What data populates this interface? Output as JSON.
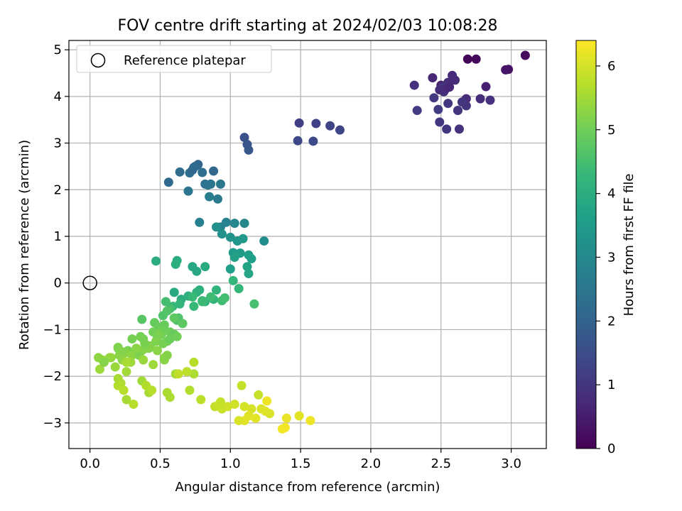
{
  "chart_data": {
    "type": "scatter",
    "title": "FOV centre drift starting at 2024/02/03 10:08:28",
    "xlabel": "Angular distance from reference (arcmin)",
    "ylabel": "Rotation from reference (arcmin)",
    "xlim": [
      -0.15,
      3.25
    ],
    "ylim": [
      -3.55,
      5.2
    ],
    "xticks": [
      "0.0",
      "0.5",
      "1.0",
      "1.5",
      "2.0",
      "2.5",
      "3.0"
    ],
    "xtick_values": [
      0,
      0.5,
      1.0,
      1.5,
      2.0,
      2.5,
      3.0
    ],
    "yticks": [
      "−3",
      "−2",
      "−1",
      "0",
      "1",
      "2",
      "3",
      "4",
      "5"
    ],
    "ytick_values": [
      -3,
      -2,
      -1,
      0,
      1,
      2,
      3,
      4,
      5
    ],
    "grid": true,
    "legend": {
      "position": "top-left",
      "entries": [
        "Reference platepar"
      ]
    },
    "reference_point": {
      "x": 0.0,
      "y": 0.0
    },
    "colorbar": {
      "label": "Hours from first FF file",
      "range": [
        0,
        6.4
      ],
      "ticks": [
        "0",
        "1",
        "2",
        "3",
        "4",
        "5",
        "6"
      ],
      "tick_values": [
        0,
        1,
        2,
        3,
        4,
        5,
        6
      ],
      "colormap": "viridis"
    },
    "series": [
      {
        "x": [
          2.69,
          2.75,
          3.1,
          2.98,
          2.96,
          2.67,
          2.82,
          2.5,
          2.44,
          2.58,
          2.6,
          2.55,
          2.31,
          2.62,
          2.51,
          2.52,
          2.68,
          2.63,
          2.62,
          2.49,
          2.45,
          2.78,
          2.85,
          2.54,
          2.68,
          2.33,
          2.48,
          2.53,
          2.65,
          2.49,
          2.55,
          2.56
        ],
        "y": [
          4.8,
          4.8,
          4.88,
          4.58,
          4.57,
          3.91,
          4.21,
          4.24,
          4.4,
          4.45,
          4.35,
          4.3,
          4.24,
          3.7,
          4.2,
          4.1,
          3.95,
          3.3,
          3.7,
          3.45,
          3.97,
          3.95,
          3.92,
          3.3,
          3.8,
          3.7,
          3.72,
          4.15,
          3.88,
          4.14,
          3.85,
          4.2
        ],
        "c": [
          0.05,
          0.15,
          0.2,
          0.3,
          0.35,
          0.45,
          0.55,
          0.6,
          0.7,
          0.75,
          0.8,
          0.85,
          0.9,
          0.95,
          1.0,
          0.9,
          0.8,
          0.95,
          1.0,
          1.05,
          1.1,
          0.85,
          0.9,
          1.05,
          0.95,
          1.1,
          1.15,
          0.75,
          1.0,
          0.85,
          1.05,
          0.7
        ]
      },
      {
        "x": [
          1.49,
          1.61,
          1.71,
          1.78,
          1.48,
          1.59,
          1.1,
          1.12,
          1.13,
          0.74,
          0.77,
          0.88,
          0.56,
          0.64,
          0.71,
          0.73,
          0.8,
          0.82,
          0.84,
          0.86,
          0.93,
          0.91,
          0.7,
          0.75
        ],
        "y": [
          3.43,
          3.42,
          3.37,
          3.28,
          3.05,
          3.04,
          3.12,
          2.97,
          2.85,
          2.48,
          2.54,
          2.4,
          2.16,
          2.38,
          2.36,
          2.42,
          2.37,
          2.12,
          2.1,
          2.12,
          2.12,
          1.8,
          1.97,
          2.5
        ],
        "c": [
          1.2,
          1.25,
          1.3,
          1.35,
          1.4,
          1.45,
          1.6,
          1.7,
          1.75,
          2.0,
          2.05,
          2.1,
          2.2,
          2.25,
          2.3,
          2.15,
          2.35,
          2.4,
          2.45,
          2.5,
          2.55,
          2.6,
          2.5,
          2.2
        ]
      },
      {
        "x": [
          0.85,
          0.78,
          0.93,
          0.97,
          1.03,
          1.1,
          1.24,
          0.9,
          0.94,
          1.0,
          1.05,
          1.09,
          1.02,
          1.07,
          1.13,
          1.15,
          1.03,
          1.12,
          1.13,
          0.73,
          0.76,
          0.82,
          0.62,
          0.61,
          0.78,
          0.76,
          0.9,
          1.02,
          1.06,
          0.6,
          0.65,
          0.7,
          0.82,
          0.88,
          0.47,
          0.64,
          0.59,
          0.73,
          0.8,
          0.94,
          0.96,
          1.0,
          1.17,
          0.74,
          0.8,
          0.86,
          0.54,
          0.57,
          0.62,
          0.63,
          0.52,
          0.55
        ],
        "y": [
          1.85,
          1.3,
          1.2,
          1.3,
          1.28,
          1.28,
          0.9,
          1.2,
          1.05,
          0.98,
          0.9,
          0.95,
          0.65,
          0.64,
          0.6,
          0.52,
          0.55,
          0.35,
          0.2,
          0.35,
          0.25,
          0.35,
          0.48,
          0.4,
          -0.15,
          -0.2,
          -0.15,
          0.05,
          -0.12,
          -0.2,
          -0.35,
          -0.28,
          -0.4,
          -0.35,
          0.47,
          -0.45,
          -0.5,
          -0.3,
          -0.4,
          -0.38,
          -0.32,
          0.3,
          -0.45,
          -0.5,
          -0.38,
          -0.3,
          -0.4,
          -0.55,
          -0.8,
          -0.75,
          -0.7,
          -0.6
        ],
        "c": [
          2.7,
          2.8,
          2.9,
          2.85,
          2.95,
          3.0,
          3.1,
          3.2,
          3.25,
          3.3,
          3.35,
          3.4,
          3.45,
          3.5,
          3.55,
          3.6,
          3.65,
          3.7,
          3.75,
          3.8,
          3.85,
          3.9,
          3.95,
          4.0,
          4.05,
          4.1,
          4.15,
          4.2,
          4.25,
          3.9,
          4.0,
          4.05,
          4.1,
          4.15,
          3.95,
          4.2,
          4.25,
          4.3,
          4.35,
          4.4,
          4.45,
          3.6,
          4.5,
          4.3,
          4.35,
          4.4,
          4.45,
          4.5,
          4.55,
          4.6,
          4.6,
          4.65
        ]
      },
      {
        "x": [
          0.37,
          0.66,
          0.6,
          0.46,
          0.49,
          0.53,
          0.51,
          0.57,
          0.45,
          0.51,
          0.3,
          0.38,
          0.48,
          0.6,
          0.55,
          0.62,
          0.2,
          0.27,
          0.33,
          0.43,
          0.52,
          0.42,
          0.48,
          0.57,
          0.37,
          0.4,
          0.3,
          0.25,
          0.35,
          0.14,
          0.21,
          0.23,
          0.18,
          0.29,
          0.38,
          0.45,
          0.53,
          0.26,
          0.15,
          0.09,
          0.07,
          0.06,
          0.1,
          0.2,
          0.24,
          0.33,
          0.47,
          0.39,
          0.36,
          0.49,
          0.53,
          0.55,
          0.61,
          0.26
        ],
        "y": [
          -0.78,
          -0.87,
          -0.75,
          -0.85,
          -0.95,
          -0.9,
          -1.0,
          -1.05,
          -1.05,
          -1.1,
          -1.2,
          -1.2,
          -1.15,
          -1.1,
          -1.25,
          -1.15,
          -1.4,
          -1.45,
          -1.5,
          -1.35,
          -1.3,
          -1.4,
          -1.45,
          -1.2,
          -1.45,
          -1.4,
          -1.55,
          -1.5,
          -1.55,
          -1.6,
          -1.55,
          -1.65,
          -1.8,
          -1.7,
          -1.65,
          -1.75,
          -1.6,
          -1.9,
          -1.6,
          -1.65,
          -1.85,
          -1.6,
          -1.7,
          -1.38,
          -1.48,
          -1.4,
          -1.25,
          -1.3,
          -1.15,
          -1.1,
          -1.65,
          -1.55,
          -1.95,
          -1.7
        ],
        "c": [
          4.7,
          4.75,
          4.8,
          4.85,
          4.9,
          4.9,
          4.95,
          4.95,
          5.0,
          5.0,
          5.05,
          5.05,
          5.0,
          4.9,
          5.05,
          5.0,
          5.1,
          5.1,
          5.1,
          5.15,
          5.05,
          5.2,
          5.25,
          4.95,
          5.25,
          5.2,
          5.3,
          5.3,
          5.15,
          5.35,
          5.25,
          5.3,
          5.4,
          5.45,
          5.4,
          5.45,
          5.3,
          5.5,
          5.35,
          5.4,
          5.45,
          5.3,
          5.2,
          5.15,
          5.2,
          5.25,
          5.15,
          5.1,
          5.05,
          5.1,
          5.25,
          5.2,
          5.5,
          5.55
        ]
      },
      {
        "x": [
          0.2,
          0.22,
          0.26,
          0.37,
          0.42,
          0.55,
          0.57,
          0.71,
          0.74,
          0.2,
          0.24,
          0.31,
          0.4,
          0.44,
          0.79,
          0.69,
          0.63,
          0.74,
          0.89,
          0.92,
          0.94,
          0.98,
          1.03,
          1.1,
          1.15,
          1.22,
          1.25,
          1.28,
          1.13,
          1.1,
          1.18,
          1.4,
          1.49,
          1.57,
          1.37,
          1.39,
          0.93,
          1.2,
          1.08,
          1.06,
          1.26
        ],
        "y": [
          -2.05,
          -2.15,
          -2.5,
          -2.1,
          -2.35,
          -2.35,
          -2.45,
          -2.3,
          -1.95,
          -2.2,
          -2.3,
          -2.6,
          -2.2,
          -2.3,
          -2.5,
          -1.9,
          -1.95,
          -1.7,
          -2.65,
          -2.6,
          -2.7,
          -2.65,
          -2.6,
          -2.65,
          -2.7,
          -2.7,
          -2.75,
          -2.8,
          -2.85,
          -2.95,
          -2.9,
          -2.9,
          -2.85,
          -2.95,
          -3.13,
          -3.1,
          -2.55,
          -2.4,
          -2.2,
          -2.95,
          -2.53
        ],
        "c": [
          5.55,
          5.6,
          5.55,
          5.5,
          5.55,
          5.6,
          5.6,
          5.65,
          5.6,
          5.65,
          5.7,
          5.7,
          5.65,
          5.7,
          5.75,
          5.75,
          5.8,
          5.7,
          5.85,
          5.9,
          5.9,
          5.95,
          5.95,
          6.0,
          6.0,
          6.05,
          6.1,
          6.05,
          6.1,
          6.15,
          6.15,
          6.2,
          6.15,
          6.25,
          6.3,
          6.3,
          5.85,
          5.85,
          5.85,
          6.05,
          6.25
        ]
      }
    ]
  }
}
